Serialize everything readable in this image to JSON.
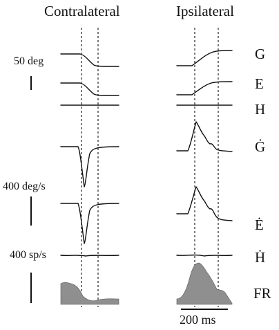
{
  "columns": {
    "left": "Contralateral",
    "right": "Ipsilateral"
  },
  "scale_bars": {
    "position": "50 deg",
    "velocity": "400 deg/s",
    "firing": "400 sp/s",
    "time": "200 ms"
  },
  "signals": [
    "G",
    "E",
    "H",
    "Ġ",
    "Ė",
    "Ḣ",
    "FR"
  ],
  "colors": {
    "trace": "#111111",
    "firing_fill": "#8f8f8f",
    "dashed": "#222222"
  }
}
